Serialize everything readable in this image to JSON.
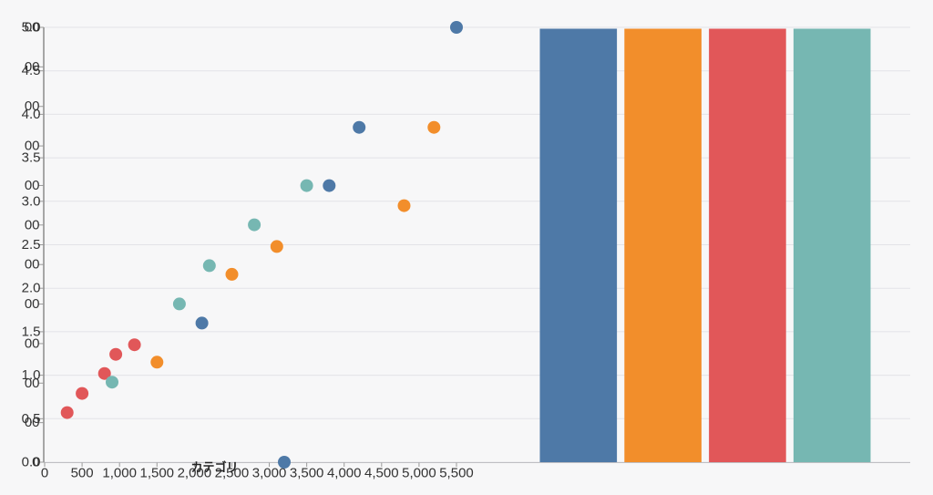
{
  "page": {
    "background": "#f7f7f8",
    "grid_line_color": "#e3e3e7",
    "axis_line_color": "#555555",
    "bottom_axis_line_color": "#bfbfc3",
    "tick_color": "#999999",
    "label_color": "#333333",
    "axis_title_color": "#222222"
  },
  "chart_data": {
    "type": "scatter",
    "title": "",
    "legend": "none",
    "grid": true,
    "x_axis": {
      "title": "カテゴリ",
      "range": [
        0,
        5500
      ],
      "tick_step": 500,
      "tick_labels": [
        "0",
        "500",
        "1,000",
        "1,500",
        "2,000",
        "2,500",
        "3,000",
        "3,500",
        "4,000",
        "4,500",
        "5,000",
        "5,500"
      ]
    },
    "y_axis": {
      "range": [
        0,
        5
      ],
      "tick_step": 0.5,
      "tick_labels": [
        "0.0",
        "0.5",
        "1.0",
        "1.5",
        "2.0",
        "2.5",
        "3.0",
        "3.5",
        "4.0",
        "4.5",
        "5.0"
      ]
    },
    "y_axis_secondary": {
      "range": [
        0,
        5500
      ],
      "tick_count": 12,
      "visible_label_fragments": [
        "0",
        "00",
        "00",
        "00",
        "00",
        "00",
        "00",
        "00",
        "00",
        "00",
        "00",
        "00"
      ]
    },
    "series": [
      {
        "name": "blue",
        "color": "#4e79a7",
        "points": [
          [
            2100,
            1.6
          ],
          [
            3200,
            0.0
          ],
          [
            3800,
            3.18
          ],
          [
            4200,
            3.85
          ],
          [
            5500,
            5.0
          ]
        ]
      },
      {
        "name": "orange",
        "color": "#f28e2b",
        "points": [
          [
            1500,
            1.15
          ],
          [
            2500,
            2.16
          ],
          [
            3100,
            2.48
          ],
          [
            4800,
            2.95
          ],
          [
            5200,
            3.85
          ]
        ]
      },
      {
        "name": "red",
        "color": "#e15759",
        "points": [
          [
            300,
            0.57
          ],
          [
            500,
            0.79
          ],
          [
            800,
            1.02
          ],
          [
            950,
            1.24
          ],
          [
            1200,
            1.35
          ]
        ]
      },
      {
        "name": "teal",
        "color": "#76b7b2",
        "points": [
          [
            900,
            0.92
          ],
          [
            1800,
            1.82
          ],
          [
            2200,
            2.26
          ],
          [
            2800,
            2.73
          ],
          [
            3500,
            3.18
          ]
        ]
      }
    ],
    "bar_series": [
      {
        "name": "blue",
        "color": "#4e79a7",
        "value": 5.0
      },
      {
        "name": "orange",
        "color": "#f28e2b",
        "value": 5.0
      },
      {
        "name": "red",
        "color": "#e15759",
        "value": 5.0
      },
      {
        "name": "teal",
        "color": "#76b7b2",
        "value": 5.0
      }
    ]
  }
}
